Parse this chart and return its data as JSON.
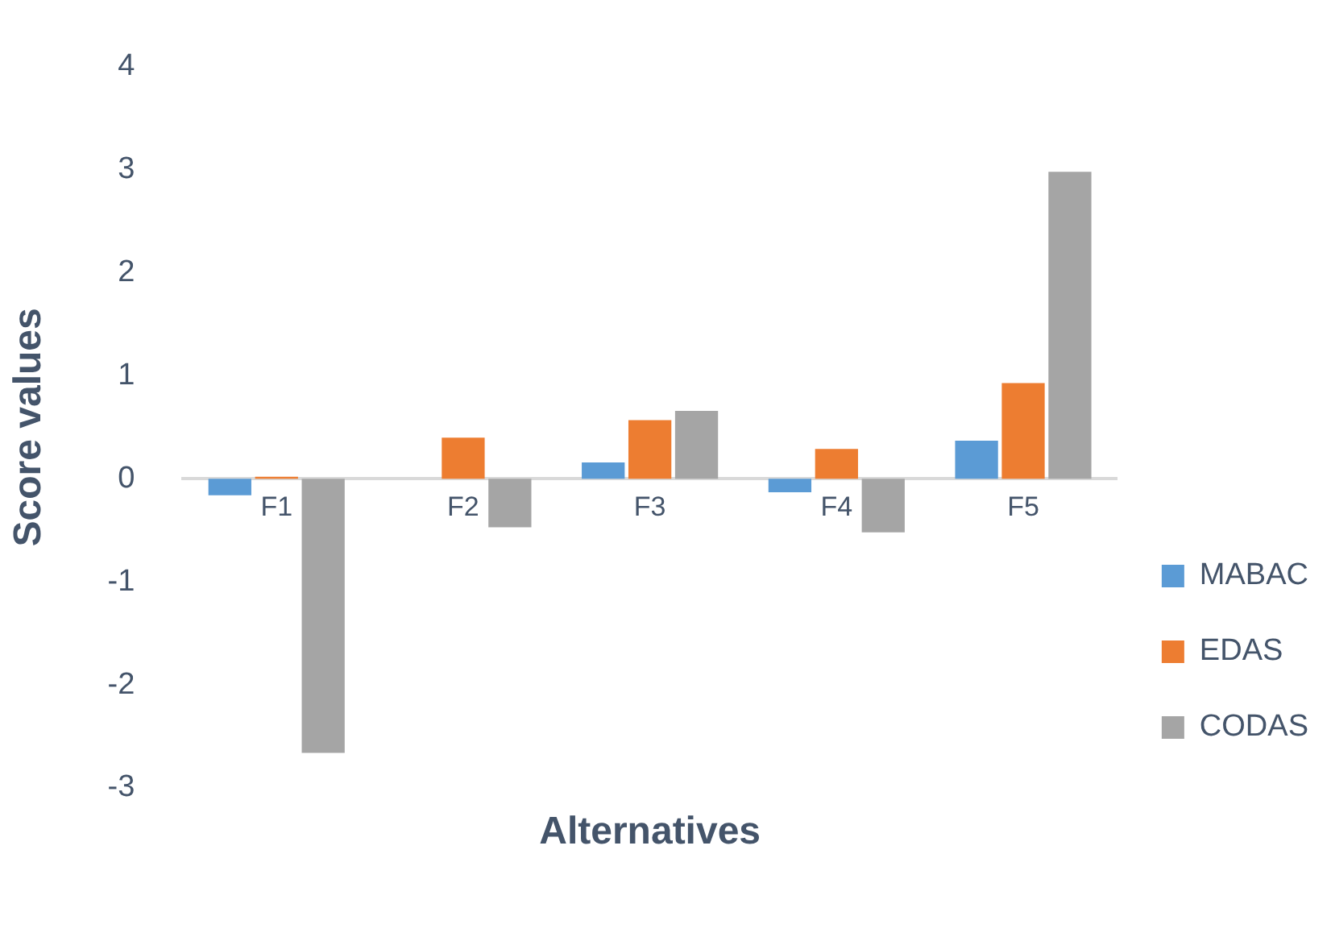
{
  "chart_data": {
    "type": "bar",
    "xlabel": "Alternatives",
    "ylabel": "Score values",
    "categories": [
      "F1",
      "F2",
      "F3",
      "F4",
      "F5"
    ],
    "series": [
      {
        "name": "MABAC",
        "color": "#5b9bd5",
        "values": [
          -0.16,
          0,
          0.16,
          -0.13,
          0.37
        ]
      },
      {
        "name": "EDAS",
        "color": "#ed7d31",
        "values": [
          0.02,
          0.4,
          0.57,
          0.29,
          0.93
        ]
      },
      {
        "name": "CODAS",
        "color": "#a5a5a5",
        "values": [
          -2.66,
          -0.47,
          0.66,
          -0.52,
          2.98
        ]
      }
    ],
    "ylim": [
      -3,
      4
    ],
    "yticks": [
      -3,
      -2,
      -1,
      0,
      1,
      2,
      3,
      4
    ],
    "grid": false,
    "legend": "bottom right"
  }
}
